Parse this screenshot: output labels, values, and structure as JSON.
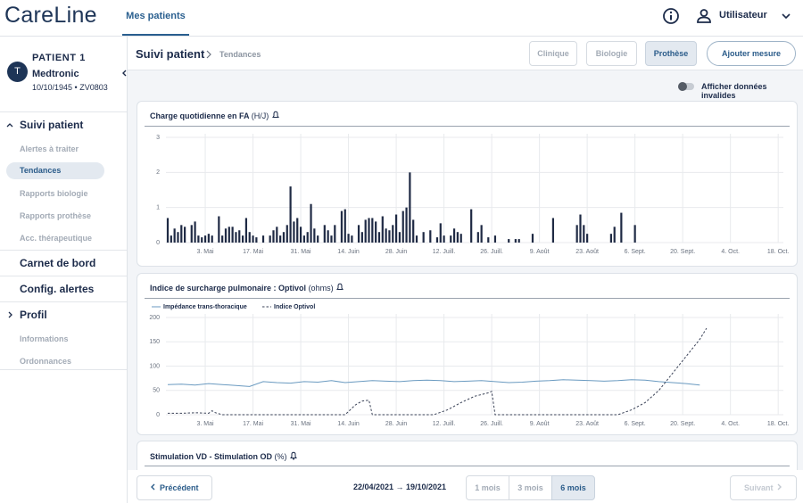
{
  "header": {
    "logo": "CareLine",
    "nav": "Mes patients",
    "user": "Utilisateur"
  },
  "patient": {
    "avatar": "T",
    "name": "PATIENT 1",
    "maker": "Medtronic",
    "info": "10/10/1945 • ZV0803"
  },
  "sidebar": {
    "sections": [
      {
        "title": "Suivi patient",
        "items": [
          "Alertes à traiter",
          "Tendances",
          "Rapports biologie",
          "Rapports prothèse",
          "Acc. thérapeutique"
        ]
      },
      {
        "title": "Carnet de bord"
      },
      {
        "title": "Config. alertes"
      },
      {
        "title": "Profil",
        "items": [
          "Informations",
          "Ordonnances"
        ]
      }
    ]
  },
  "breadcrumb": {
    "title": "Suivi patient",
    "current": "Tendances"
  },
  "tabs": [
    "Clinique",
    "Biologie",
    "Prothèse"
  ],
  "add_button": "Ajouter mesure",
  "toggle_label": "Afficher données invalides",
  "chart_data": [
    {
      "type": "bar",
      "title": "Charge quotidienne en FA",
      "unit": "(H/J)",
      "color": "#1f2a44",
      "grid": true,
      "x": [
        0,
        1,
        2,
        3,
        4,
        5,
        7,
        8,
        9,
        10,
        11,
        12,
        13,
        15,
        16,
        17,
        18,
        19,
        20,
        21,
        22,
        23,
        24,
        25,
        26,
        28,
        30,
        31,
        32,
        33,
        34,
        35,
        36,
        37,
        38,
        39,
        40,
        41,
        42,
        43,
        44,
        46,
        47,
        48,
        49,
        51,
        52,
        53,
        54,
        56,
        57,
        58,
        59,
        60,
        61,
        62,
        63,
        64,
        65,
        66,
        67,
        68,
        69,
        70,
        71,
        72,
        73,
        75,
        77,
        79,
        80,
        81,
        83,
        84,
        85,
        86,
        89,
        91,
        92,
        94,
        96,
        100,
        102,
        103,
        107,
        113,
        120,
        121,
        122,
        123,
        130,
        131,
        133,
        137
      ],
      "values": [
        0.7,
        0.2,
        0.4,
        0.3,
        0.5,
        0.45,
        0.5,
        0.6,
        0.2,
        0.15,
        0.2,
        0.25,
        0.2,
        0.75,
        0.2,
        0.4,
        0.45,
        0.45,
        0.3,
        0.35,
        0.2,
        0.7,
        0.3,
        0.2,
        0.15,
        0.2,
        0.2,
        0.35,
        0.45,
        0.2,
        0.3,
        0.5,
        1.6,
        0.6,
        0.7,
        0.45,
        0.2,
        0.3,
        1.1,
        0.4,
        0.2,
        0.5,
        0.35,
        0.2,
        0.5,
        0.9,
        0.95,
        0.25,
        0.2,
        0.5,
        0.3,
        0.65,
        0.7,
        0.7,
        0.6,
        0.3,
        0.75,
        0.4,
        0.35,
        0.5,
        0.8,
        0.3,
        0.9,
        1.0,
        2.0,
        0.65,
        0.2,
        0.3,
        0.35,
        0.15,
        0.55,
        0.2,
        0.2,
        0.4,
        0.3,
        0.25,
        0.95,
        0.3,
        0.5,
        0.15,
        0.2,
        0.1,
        0.1,
        0.1,
        0.25,
        0.7,
        0.5,
        0.8,
        0.5,
        0.25,
        0.25,
        0.45,
        0.85,
        0.5
      ],
      "xlim": [
        0,
        180
      ],
      "xticks": [
        {
          "value": 11,
          "label": "3. Mai"
        },
        {
          "value": 25,
          "label": "17. Mai"
        },
        {
          "value": 39,
          "label": "31. Mai"
        },
        {
          "value": 53,
          "label": "14. Juin"
        },
        {
          "value": 67,
          "label": "28. Juin"
        },
        {
          "value": 81,
          "label": "12. Juill."
        },
        {
          "value": 95,
          "label": "26. Juill."
        },
        {
          "value": 109,
          "label": "9. Août"
        },
        {
          "value": 123,
          "label": "23. Août"
        },
        {
          "value": 137,
          "label": "6. Sept."
        },
        {
          "value": 151,
          "label": "20. Sept."
        },
        {
          "value": 165,
          "label": "4. Oct."
        },
        {
          "value": 179,
          "label": "18. Oct."
        }
      ],
      "ylim": [
        0,
        3
      ],
      "yticks": [
        0,
        1,
        2,
        3
      ]
    },
    {
      "type": "line",
      "title": "Indice de surcharge pulmonaire : Optivol",
      "unit": "(ohms)",
      "grid": true,
      "series": [
        {
          "name": "Impédance trans-thoracique",
          "color": "#6a9ac0",
          "style": "solid",
          "x": [
            0,
            4,
            8,
            12,
            16,
            20,
            24,
            28,
            32,
            36,
            40,
            44,
            48,
            52,
            56,
            60,
            64,
            68,
            72,
            76,
            80,
            84,
            88,
            92,
            96,
            100,
            104,
            108,
            112,
            116,
            120,
            124,
            128,
            132,
            136,
            140,
            144,
            148,
            152,
            156
          ],
          "values": [
            62,
            63,
            61,
            64,
            62,
            60,
            58,
            68,
            66,
            65,
            68,
            67,
            70,
            66,
            68,
            70,
            69,
            68,
            70,
            71,
            70,
            68,
            69,
            70,
            68,
            66,
            67,
            69,
            70,
            72,
            71,
            70,
            69,
            70,
            72,
            71,
            68,
            66,
            64,
            61
          ]
        },
        {
          "name": "Indice Optivol",
          "color": "#3a4257",
          "style": "dashed",
          "x": [
            0,
            4,
            8,
            12,
            13,
            14,
            16,
            52,
            55,
            57,
            59,
            60,
            78,
            82,
            86,
            90,
            94,
            95,
            96,
            132,
            136,
            140,
            144,
            148,
            152,
            156,
            158
          ],
          "values": [
            3,
            3,
            4,
            3,
            8,
            4,
            0,
            0,
            20,
            28,
            30,
            0,
            0,
            10,
            25,
            38,
            45,
            48,
            0,
            0,
            10,
            25,
            50,
            85,
            120,
            155,
            178
          ]
        }
      ],
      "xlim": [
        0,
        180
      ],
      "xticks": [
        {
          "value": 11,
          "label": "3. Mai"
        },
        {
          "value": 25,
          "label": "17. Mai"
        },
        {
          "value": 39,
          "label": "31. Mai"
        },
        {
          "value": 53,
          "label": "14. Juin"
        },
        {
          "value": 67,
          "label": "28. Juin"
        },
        {
          "value": 81,
          "label": "12. Juill."
        },
        {
          "value": 95,
          "label": "26. Juill."
        },
        {
          "value": 109,
          "label": "9. Août"
        },
        {
          "value": 123,
          "label": "23. Août"
        },
        {
          "value": 137,
          "label": "6. Sept."
        },
        {
          "value": 151,
          "label": "20. Sept."
        },
        {
          "value": 165,
          "label": "4. Oct."
        },
        {
          "value": 179,
          "label": "18. Oct."
        }
      ],
      "ylim": [
        0,
        200
      ],
      "yticks": [
        0,
        50,
        100,
        150,
        200
      ]
    }
  ],
  "third_card": {
    "title": "Stimulation VD - Stimulation OD",
    "unit": "(%)"
  },
  "footer": {
    "prev": "Précédent",
    "range": "22/04/2021 → 19/10/2021",
    "periods": [
      "1 mois",
      "3 mois",
      "6 mois"
    ],
    "next": "Suivant"
  }
}
